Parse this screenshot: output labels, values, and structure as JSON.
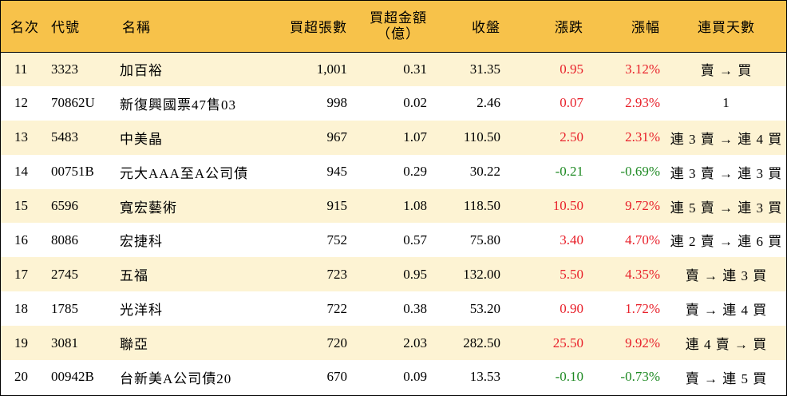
{
  "table": {
    "headers": {
      "rank": "名次",
      "code": "代號",
      "name": "名稱",
      "net_buy_shares": "買超張數",
      "net_buy_amount_line1": "買超金額",
      "net_buy_amount_line2": "（億）",
      "close": "收盤",
      "change": "漲跌",
      "change_pct": "漲幅",
      "consecutive_days": "連買天數"
    },
    "rows": [
      {
        "rank": "11",
        "code": "3323",
        "name": "加百裕",
        "shares": "1,001",
        "amount": "0.31",
        "close": "31.35",
        "change": "0.95",
        "pct": "3.12%",
        "days": "賣 → 買",
        "dir": "up"
      },
      {
        "rank": "12",
        "code": "70862U",
        "name": "新復興國票47售03",
        "shares": "998",
        "amount": "0.02",
        "close": "2.46",
        "change": "0.07",
        "pct": "2.93%",
        "days": "1",
        "dir": "up"
      },
      {
        "rank": "13",
        "code": "5483",
        "name": "中美晶",
        "shares": "967",
        "amount": "1.07",
        "close": "110.50",
        "change": "2.50",
        "pct": "2.31%",
        "days": "連 3 賣 → 連 4 買",
        "dir": "up"
      },
      {
        "rank": "14",
        "code": "00751B",
        "name": "元大AAA至A公司債",
        "shares": "945",
        "amount": "0.29",
        "close": "30.22",
        "change": "-0.21",
        "pct": "-0.69%",
        "days": "連 3 賣 → 連 3 買",
        "dir": "down"
      },
      {
        "rank": "15",
        "code": "6596",
        "name": "寬宏藝術",
        "shares": "915",
        "amount": "1.08",
        "close": "118.50",
        "change": "10.50",
        "pct": "9.72%",
        "days": "連 5 賣 → 連 3 買",
        "dir": "up"
      },
      {
        "rank": "16",
        "code": "8086",
        "name": "宏捷科",
        "shares": "752",
        "amount": "0.57",
        "close": "75.80",
        "change": "3.40",
        "pct": "4.70%",
        "days": "連 2 賣 → 連 6 買",
        "dir": "up"
      },
      {
        "rank": "17",
        "code": "2745",
        "name": "五福",
        "shares": "723",
        "amount": "0.95",
        "close": "132.00",
        "change": "5.50",
        "pct": "4.35%",
        "days": "賣 → 連 3 買",
        "dir": "up"
      },
      {
        "rank": "18",
        "code": "1785",
        "name": "光洋科",
        "shares": "722",
        "amount": "0.38",
        "close": "53.20",
        "change": "0.90",
        "pct": "1.72%",
        "days": "賣 → 連 4 買",
        "dir": "up"
      },
      {
        "rank": "19",
        "code": "3081",
        "name": "聯亞",
        "shares": "720",
        "amount": "2.03",
        "close": "282.50",
        "change": "25.50",
        "pct": "9.92%",
        "days": "連 4 賣 → 買",
        "dir": "up"
      },
      {
        "rank": "20",
        "code": "00942B",
        "name": "台新美A公司債20",
        "shares": "670",
        "amount": "0.09",
        "close": "13.53",
        "change": "-0.10",
        "pct": "-0.73%",
        "days": "賣 → 連 5 買",
        "dir": "down"
      }
    ]
  },
  "colors": {
    "header_bg": "#f7c24a",
    "odd_row_bg": "#fdf3d3",
    "even_row_bg": "#ffffff",
    "up": "#e8202a",
    "down": "#1f8a24"
  }
}
